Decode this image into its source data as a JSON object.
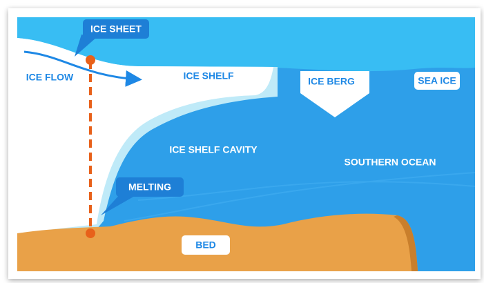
{
  "labels": {
    "ice_sheet": "ICE SHEET",
    "ice_flow": "ICE FLOW",
    "ice_shelf": "ICE SHELF",
    "ice_berg": "ICE BERG",
    "sea_ice": "SEA ICE",
    "ice_shelf_cavity": "ICE SHELF CAVITY",
    "southern_ocean": "SOUTHERN OCEAN",
    "melting": "MELTING",
    "bed": "BED"
  }
}
